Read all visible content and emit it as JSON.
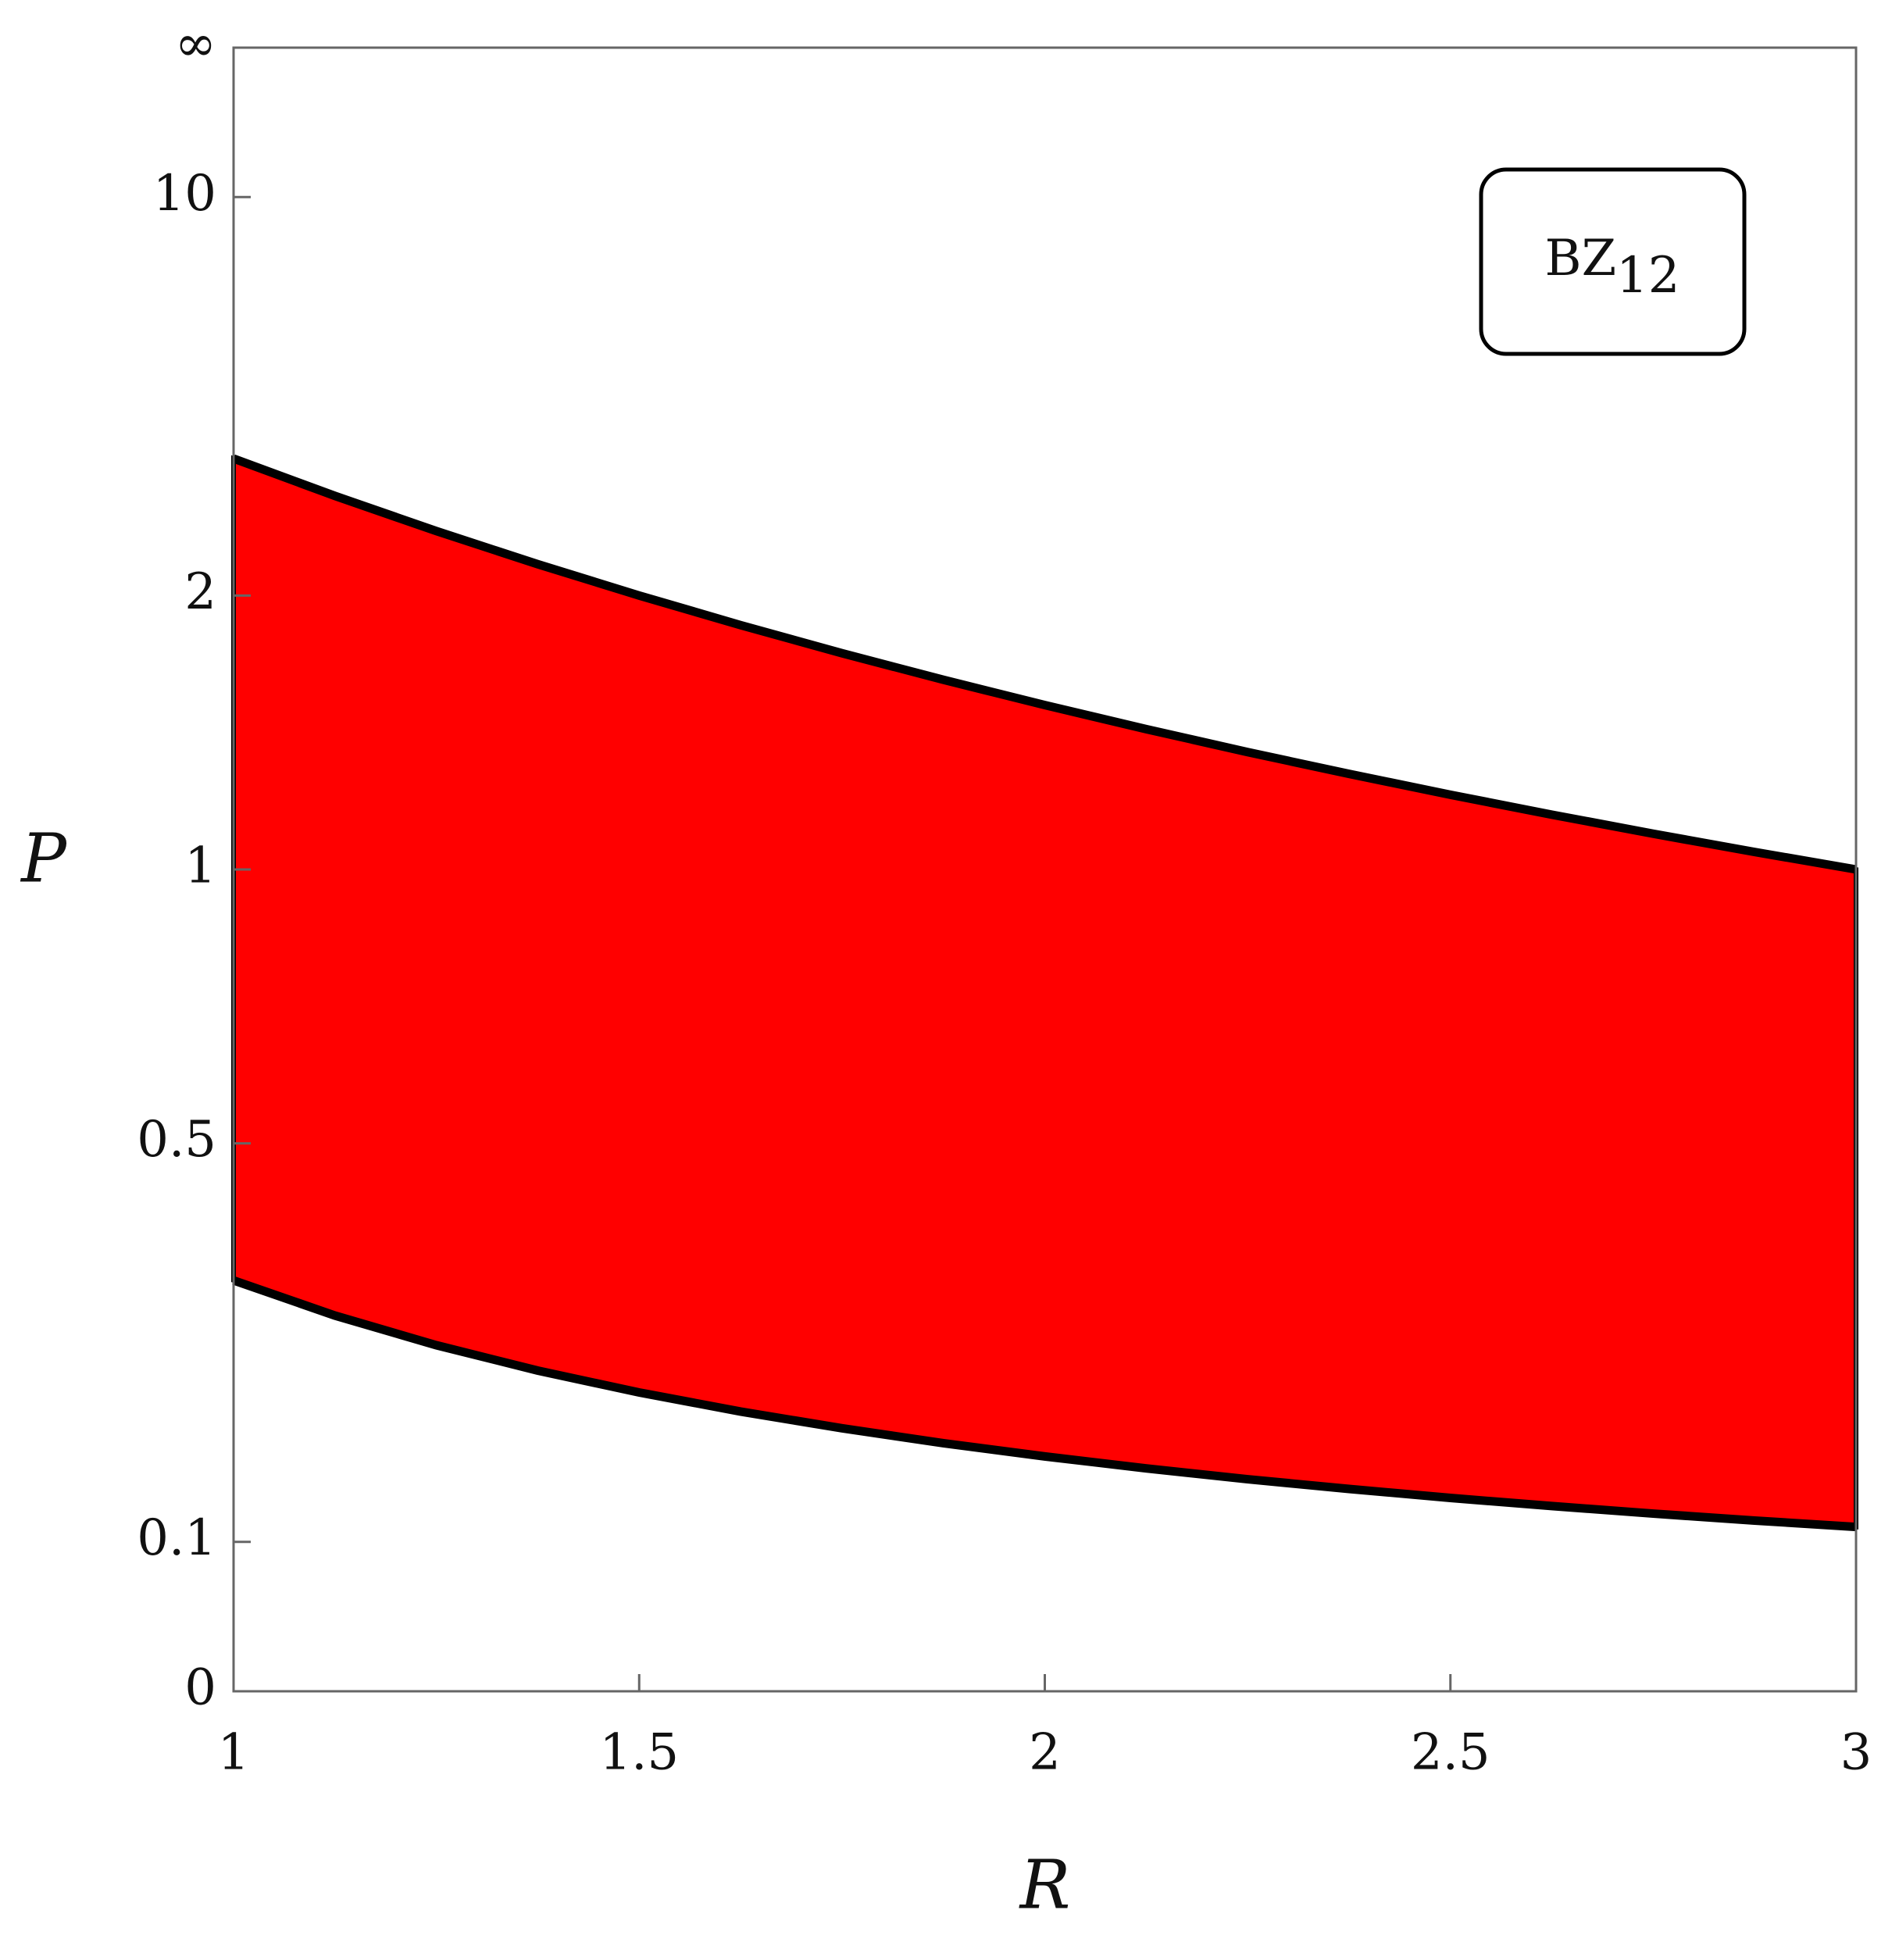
{
  "chart_data": {
    "type": "band",
    "x_label": "R",
    "y_label": "P",
    "annotation": {
      "text": "BZ",
      "subscript": "12"
    },
    "x": [
      1,
      1.125,
      1.25,
      1.375,
      1.5,
      1.625,
      1.75,
      1.875,
      2,
      2.125,
      2.25,
      2.375,
      2.5,
      2.625,
      2.75,
      2.875,
      3
    ],
    "upper": [
      3,
      2.6667,
      2.4,
      2.1818,
      2,
      1.8462,
      1.7143,
      1.6,
      1.5,
      1.4118,
      1.3333,
      1.2632,
      1.2,
      1.1429,
      1.0909,
      1.0435,
      1
    ],
    "lower": [
      0.3333,
      0.2963,
      0.2667,
      0.2424,
      0.2222,
      0.2051,
      0.1905,
      0.1778,
      0.1667,
      0.1569,
      0.1481,
      0.1404,
      0.1333,
      0.127,
      0.1212,
      0.1159,
      0.1111
    ],
    "color": "#ff0000",
    "line_color": "#000000",
    "yscale": "p/(1+p)",
    "xlim": [
      1,
      3
    ],
    "xticks": [
      1,
      1.5,
      2,
      2.5,
      3
    ],
    "ylim": [
      0,
      null
    ],
    "yticks": [
      0,
      0.1,
      0.5,
      1,
      2,
      10,
      {
        "value": null,
        "label": "∞"
      }
    ]
  }
}
